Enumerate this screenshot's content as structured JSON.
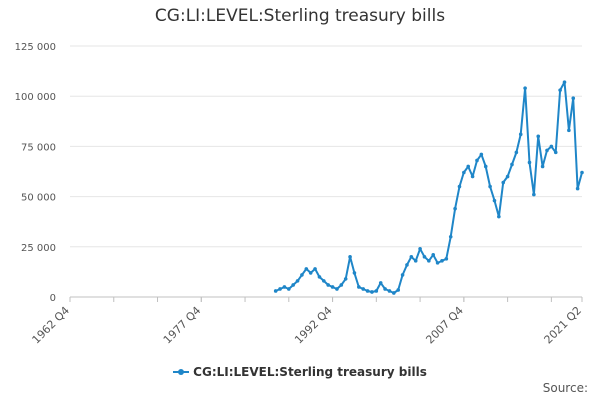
{
  "source_label": "Source:",
  "chart_data": {
    "type": "line",
    "title": "CG:LI:LEVEL:Sterling treasury bills",
    "xlabel": "",
    "ylabel": "",
    "x_tick_labels": [
      "1962 Q4",
      "1977 Q4",
      "1992 Q4",
      "2007 Q4",
      "2021 Q2"
    ],
    "x_range": [
      "1962 Q4",
      "2021 Q2"
    ],
    "y_ticks": [
      0,
      25000,
      50000,
      75000,
      100000,
      125000
    ],
    "y_tick_labels": [
      "0",
      "25 000",
      "50 000",
      "75 000",
      "100 000",
      "125 000"
    ],
    "ylim": [
      0,
      125000
    ],
    "grid": "horizontal",
    "legend_position": "bottom",
    "series_color": "#1f86c8",
    "series": [
      {
        "name": "CG:LI:LEVEL:Sterling treasury bills",
        "x": [
          "1986 Q2",
          "1986 Q4",
          "1987 Q2",
          "1987 Q4",
          "1988 Q2",
          "1988 Q4",
          "1989 Q2",
          "1989 Q4",
          "1990 Q2",
          "1990 Q4",
          "1991 Q2",
          "1991 Q4",
          "1992 Q2",
          "1992 Q4",
          "1993 Q2",
          "1993 Q4",
          "1994 Q2",
          "1994 Q4",
          "1995 Q2",
          "1995 Q4",
          "1996 Q2",
          "1996 Q4",
          "1997 Q2",
          "1997 Q4",
          "1998 Q2",
          "1998 Q4",
          "1999 Q2",
          "1999 Q4",
          "2000 Q2",
          "2000 Q4",
          "2001 Q2",
          "2001 Q4",
          "2002 Q2",
          "2002 Q4",
          "2003 Q2",
          "2003 Q4",
          "2004 Q2",
          "2004 Q4",
          "2005 Q2",
          "2005 Q4",
          "2006 Q2",
          "2006 Q4",
          "2007 Q2",
          "2007 Q4",
          "2008 Q2",
          "2008 Q4",
          "2009 Q2",
          "2009 Q4",
          "2010 Q2",
          "2010 Q4",
          "2011 Q2",
          "2011 Q4",
          "2012 Q2",
          "2012 Q4",
          "2013 Q2",
          "2013 Q4",
          "2014 Q2",
          "2014 Q4",
          "2015 Q2",
          "2015 Q4",
          "2016 Q2",
          "2016 Q4",
          "2017 Q2",
          "2017 Q4",
          "2018 Q2",
          "2018 Q4",
          "2019 Q2",
          "2019 Q4",
          "2020 Q2",
          "2020 Q4",
          "2021 Q2"
        ],
        "values": [
          3000,
          4000,
          5000,
          4000,
          6000,
          8000,
          11000,
          14000,
          12000,
          14000,
          10000,
          8000,
          6000,
          5000,
          4000,
          6000,
          9000,
          20000,
          12000,
          5000,
          4000,
          3000,
          2500,
          3000,
          7000,
          4000,
          3000,
          2000,
          3500,
          11000,
          16000,
          20000,
          18000,
          24000,
          20000,
          18000,
          21000,
          17000,
          18000,
          19000,
          30000,
          44000,
          55000,
          62000,
          65000,
          60000,
          68000,
          71000,
          65000,
          55000,
          48000,
          40000,
          57000,
          60000,
          66000,
          72000,
          81000,
          104000,
          67000,
          51000,
          80000,
          65000,
          73000,
          75000,
          72000,
          103000,
          107000,
          83000,
          99000,
          54000,
          62000
        ]
      }
    ]
  }
}
